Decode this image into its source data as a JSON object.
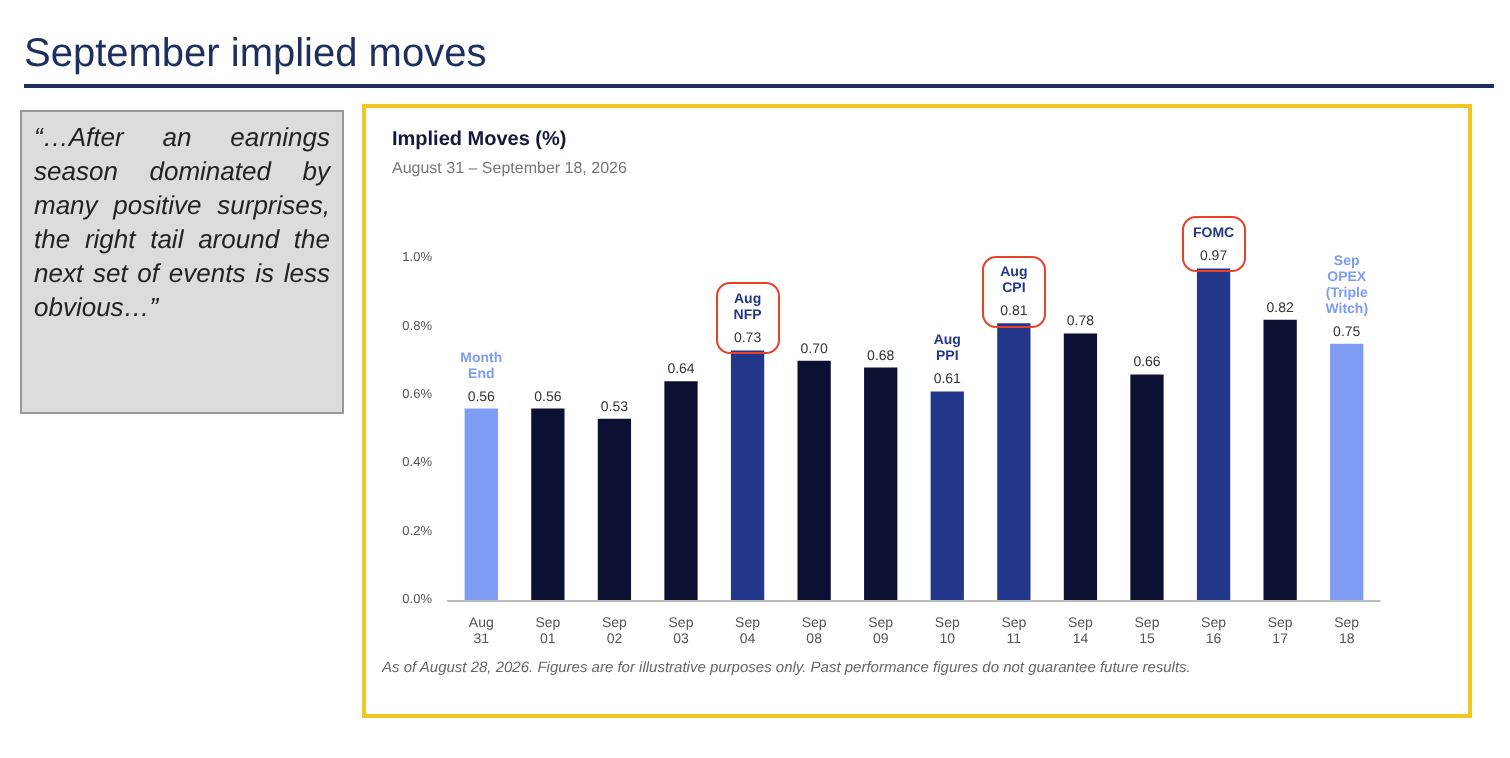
{
  "chart_data": {
    "type": "bar",
    "title": "Implied Moves (%)",
    "subtitle": "August 31 – September 18, 2026",
    "categories": [
      "Aug\n31",
      "Sep\n01",
      "Sep\n02",
      "Sep\n03",
      "Sep\n04",
      "Sep\n08",
      "Sep\n09",
      "Sep\n10",
      "Sep\n11",
      "Sep\n14",
      "Sep\n15",
      "Sep\n16",
      "Sep\n17",
      "Sep\n18"
    ],
    "values": [
      0.56,
      0.56,
      0.53,
      0.64,
      0.73,
      0.7,
      0.68,
      0.61,
      0.81,
      0.78,
      0.66,
      0.97,
      0.82,
      0.75
    ],
    "value_labels": [
      "0.56",
      "0.56",
      "0.53",
      "0.64",
      "0.73",
      "0.70",
      "0.68",
      "0.61",
      "0.81",
      "0.78",
      "0.66",
      "0.97",
      "0.82",
      "0.75"
    ],
    "colors": [
      "#7f9cf5",
      "#0c1033",
      "#0c1033",
      "#0c1033",
      "#22378a",
      "#0c1033",
      "#0c1033",
      "#22378a",
      "#22378a",
      "#0c1033",
      "#0c1033",
      "#22378a",
      "#0c1033",
      "#7f9cf5"
    ],
    "ylim": [
      0,
      1.1
    ],
    "yticks": [
      {
        "value": 0,
        "label": "0.0%"
      },
      {
        "value": 0.2,
        "label": "0.2%"
      },
      {
        "value": 0.4,
        "label": "0.4%"
      },
      {
        "value": 0.6,
        "label": "0.6%"
      },
      {
        "value": 0.8,
        "label": "0.8%"
      },
      {
        "value": 1.0,
        "label": "1.0%"
      }
    ],
    "grid": false,
    "annotations": [
      "September implied moves",
      "“…After an earnings season dominated by many positive surprises, the right tail around the next set of events is less obvious…”",
      "As of August 28, 2026. Figures are for illustrative purposes only. Past performance figures do not guarantee future results.",
      {
        "text": "Month\nEnd",
        "x": "Aug\n31",
        "y": 0.56
      },
      {
        "text": "Aug\nNFP",
        "x": "Sep\n04",
        "y": 0.73
      },
      {
        "text": "Aug\nPPI",
        "x": "Sep\n10",
        "y": 0.61
      },
      {
        "text": "Aug\nCPI",
        "x": "Sep\n11",
        "y": 0.81
      },
      {
        "text": "FOMC",
        "x": "Sep\n16",
        "y": 0.97
      },
      {
        "text": "Sep\nOPEX\n(Triple\nWitch)",
        "x": "Sep\n18",
        "y": 0.75
      }
    ]
  }
}
